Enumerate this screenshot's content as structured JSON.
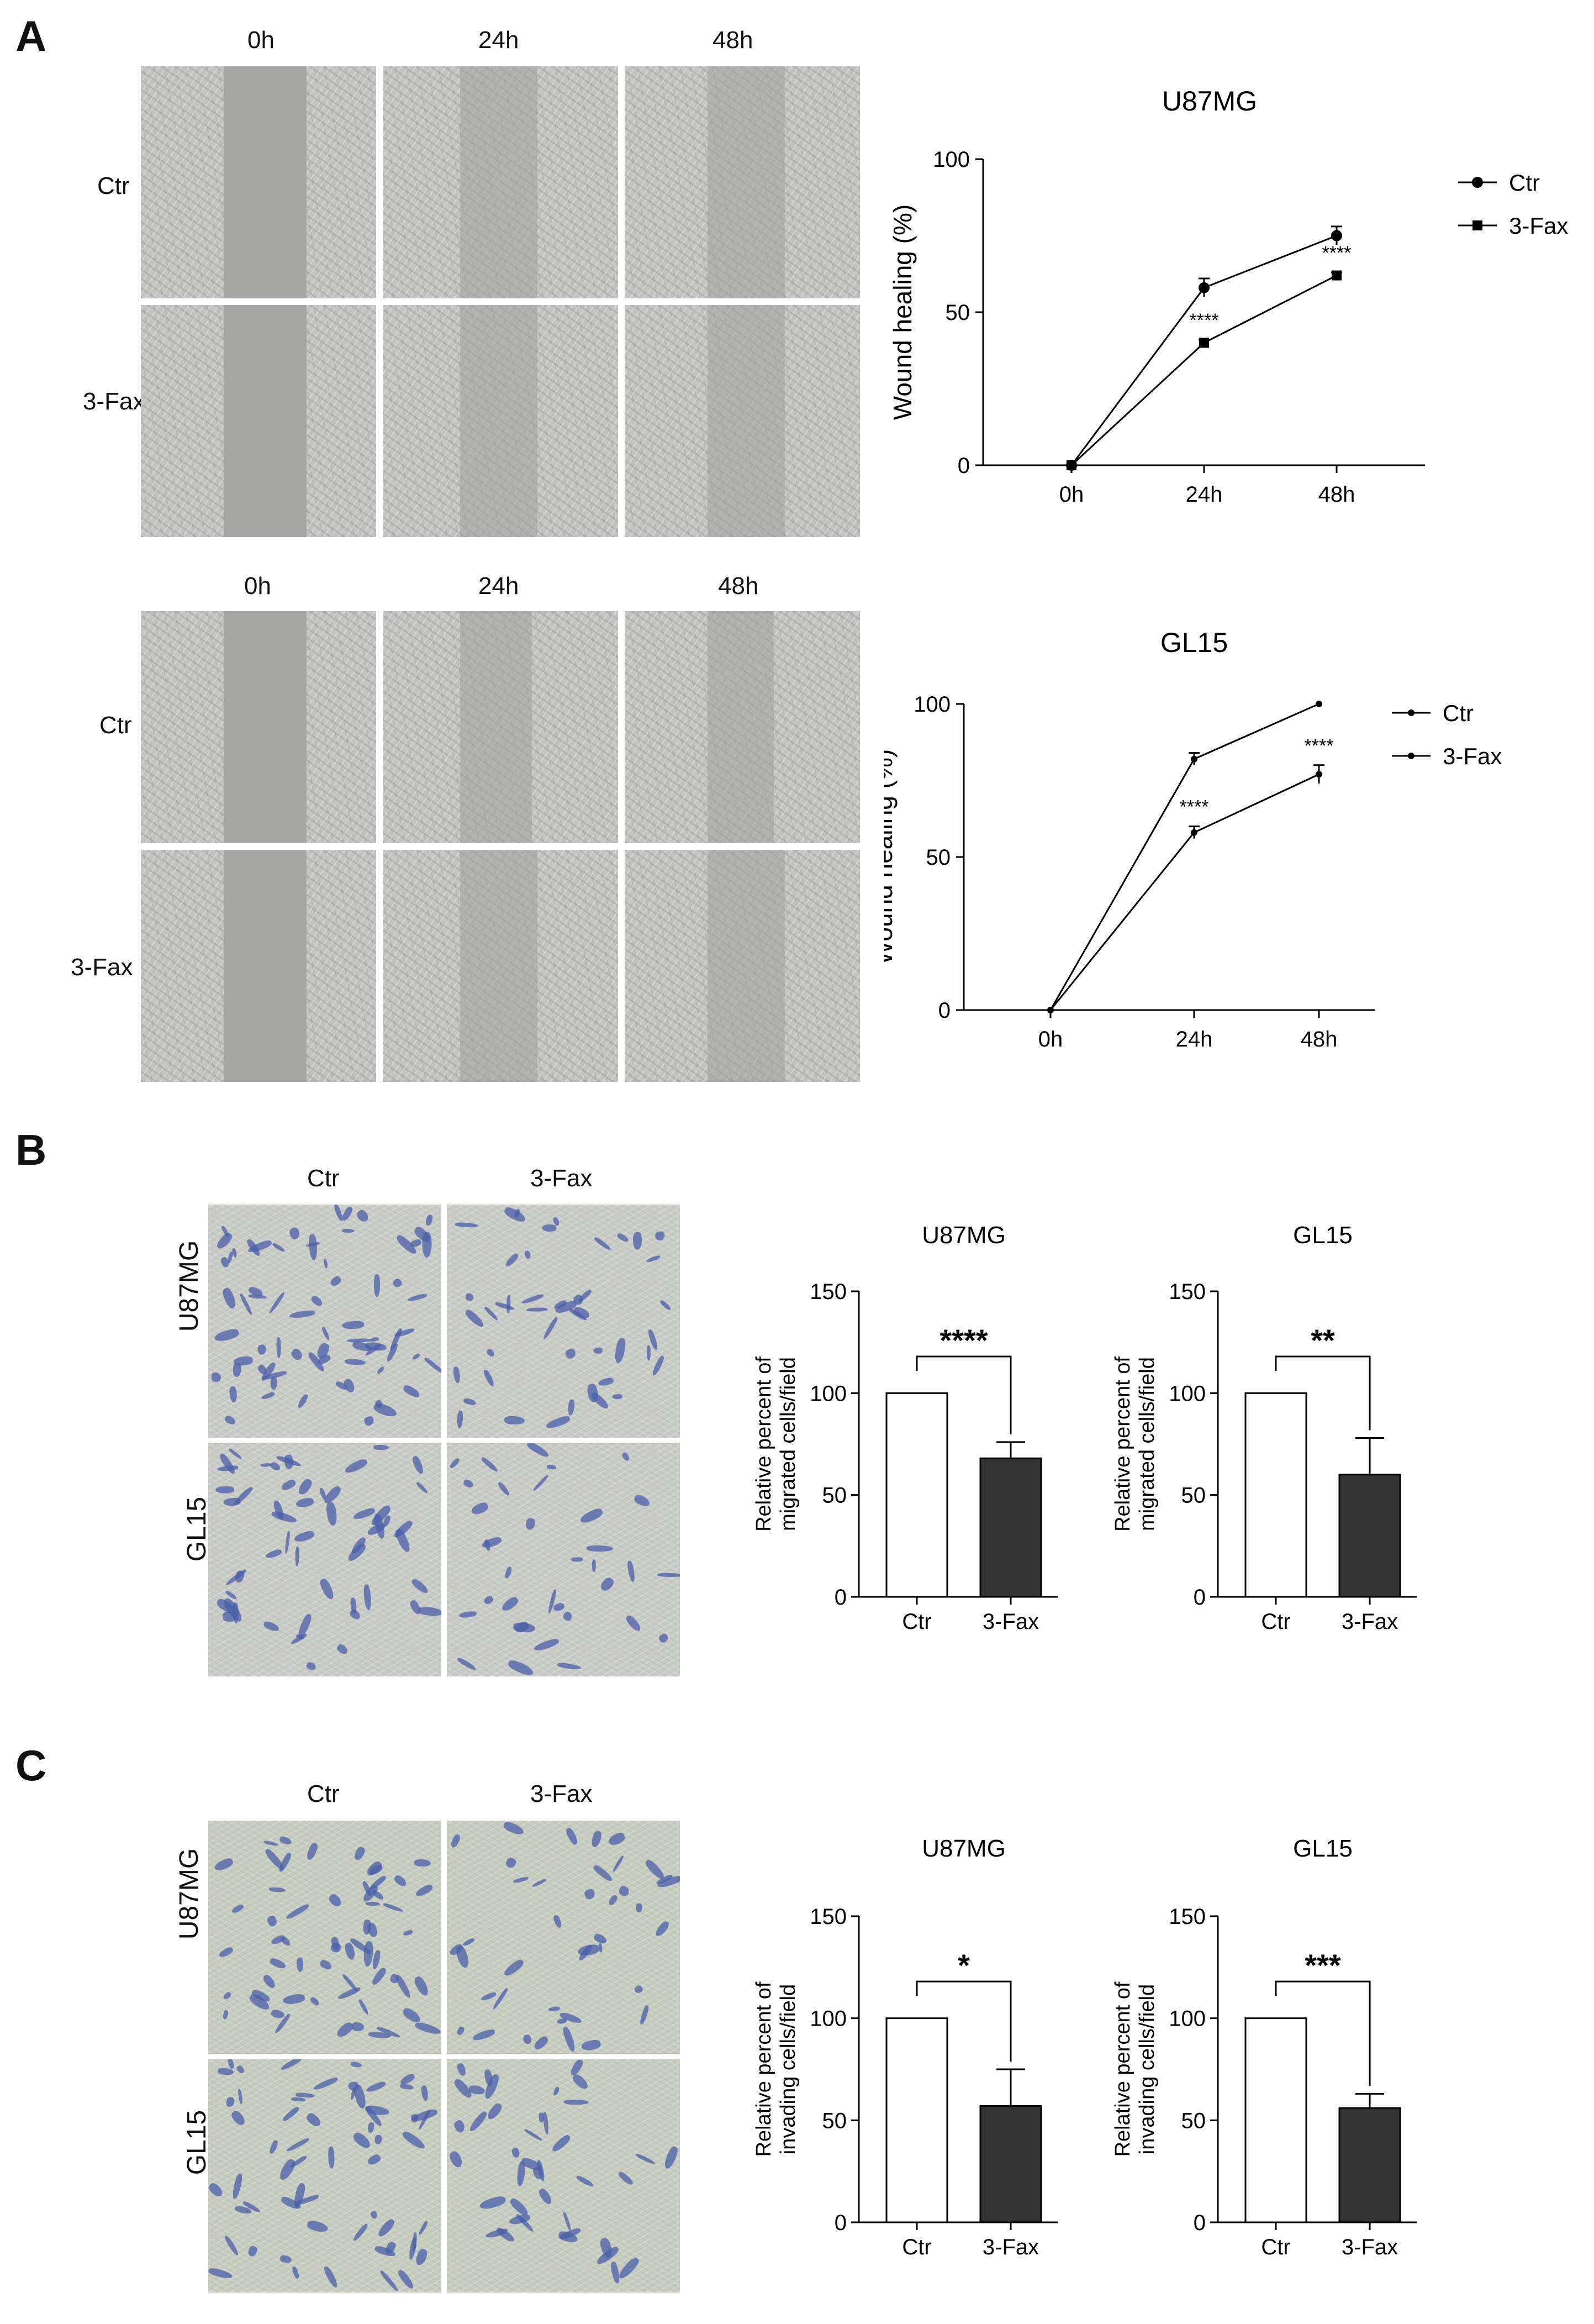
{
  "panels": {
    "A": {
      "letter": "A",
      "u87_times": [
        "0h",
        "24h",
        "48h"
      ],
      "gl15_times": [
        "0h",
        "24h",
        "48h"
      ],
      "u87_rows": [
        "Ctr",
        "3-Fax"
      ],
      "gl15_rows": [
        "Ctr",
        "3-Fax"
      ]
    },
    "B": {
      "letter": "B",
      "cols": [
        "Ctr",
        "3-Fax"
      ],
      "rows": [
        "U87MG",
        "GL15"
      ]
    },
    "C": {
      "letter": "C",
      "cols": [
        "Ctr",
        "3-Fax"
      ],
      "rows": [
        "U87MG",
        "GL15"
      ]
    }
  },
  "colors": {
    "axis": "#000000",
    "bar_ctr": "#ffffff",
    "bar_fax": "#333333",
    "stain": "#4a5fa8"
  },
  "chart_data": [
    {
      "id": "A_U87MG",
      "type": "line",
      "title": "U87MG",
      "xlabel": "",
      "ylabel": "Wound healing (%)",
      "categories": [
        "0h",
        "24h",
        "48h"
      ],
      "ylim": [
        0,
        100
      ],
      "yticks": [
        0,
        50,
        100
      ],
      "series": [
        {
          "name": "Ctr",
          "marker": "circle",
          "values": [
            0,
            58,
            75
          ],
          "errors": [
            0,
            3,
            3
          ]
        },
        {
          "name": "3-Fax",
          "marker": "square",
          "values": [
            0,
            40,
            62
          ],
          "errors": [
            0,
            1,
            1
          ]
        }
      ],
      "annotations": [
        {
          "x": "24h",
          "text": "****"
        },
        {
          "x": "48h",
          "text": "****"
        }
      ],
      "legend": "top-right"
    },
    {
      "id": "A_GL15",
      "type": "line",
      "title": "GL15",
      "xlabel": "",
      "ylabel": "Wound healing (%)",
      "categories": [
        "0h",
        "24h",
        "48h"
      ],
      "ylim": [
        0,
        100
      ],
      "yticks": [
        0,
        50,
        100
      ],
      "series": [
        {
          "name": "Ctr",
          "marker": "dot",
          "values": [
            0,
            82,
            100
          ],
          "errors": [
            0,
            2,
            0
          ]
        },
        {
          "name": "3-Fax",
          "marker": "dot",
          "values": [
            0,
            58,
            77
          ],
          "errors": [
            0,
            2,
            3
          ]
        }
      ],
      "annotations": [
        {
          "x": "24h",
          "text": "****"
        },
        {
          "x": "48h",
          "text": "****"
        }
      ],
      "legend": "top-right"
    },
    {
      "id": "B_U87MG",
      "type": "bar",
      "title": "U87MG",
      "ylabel": "Relative percent of migrated cells/field",
      "categories": [
        "Ctr",
        "3-Fax"
      ],
      "values": [
        100,
        68
      ],
      "errors": [
        0,
        8
      ],
      "ylim": [
        0,
        150
      ],
      "yticks": [
        0,
        50,
        100,
        150
      ],
      "significance": "****"
    },
    {
      "id": "B_GL15",
      "type": "bar",
      "title": "GL15",
      "ylabel": "Relative percent of migrated cells/field",
      "categories": [
        "Ctr",
        "3-Fax"
      ],
      "values": [
        100,
        60
      ],
      "errors": [
        0,
        18
      ],
      "ylim": [
        0,
        150
      ],
      "yticks": [
        0,
        50,
        100,
        150
      ],
      "significance": "**"
    },
    {
      "id": "C_U87MG",
      "type": "bar",
      "title": "U87MG",
      "ylabel": "Relative percent of invading cells/field",
      "categories": [
        "Ctr",
        "3-Fax"
      ],
      "values": [
        100,
        57
      ],
      "errors": [
        0,
        18
      ],
      "ylim": [
        0,
        150
      ],
      "yticks": [
        0,
        50,
        100,
        150
      ],
      "significance": "*"
    },
    {
      "id": "C_GL15",
      "type": "bar",
      "title": "GL15",
      "ylabel": "Relative percent of invading cells/field",
      "categories": [
        "Ctr",
        "3-Fax"
      ],
      "values": [
        100,
        56
      ],
      "errors": [
        0,
        7
      ],
      "ylim": [
        0,
        150
      ],
      "yticks": [
        0,
        50,
        100,
        150
      ],
      "significance": "***"
    }
  ]
}
